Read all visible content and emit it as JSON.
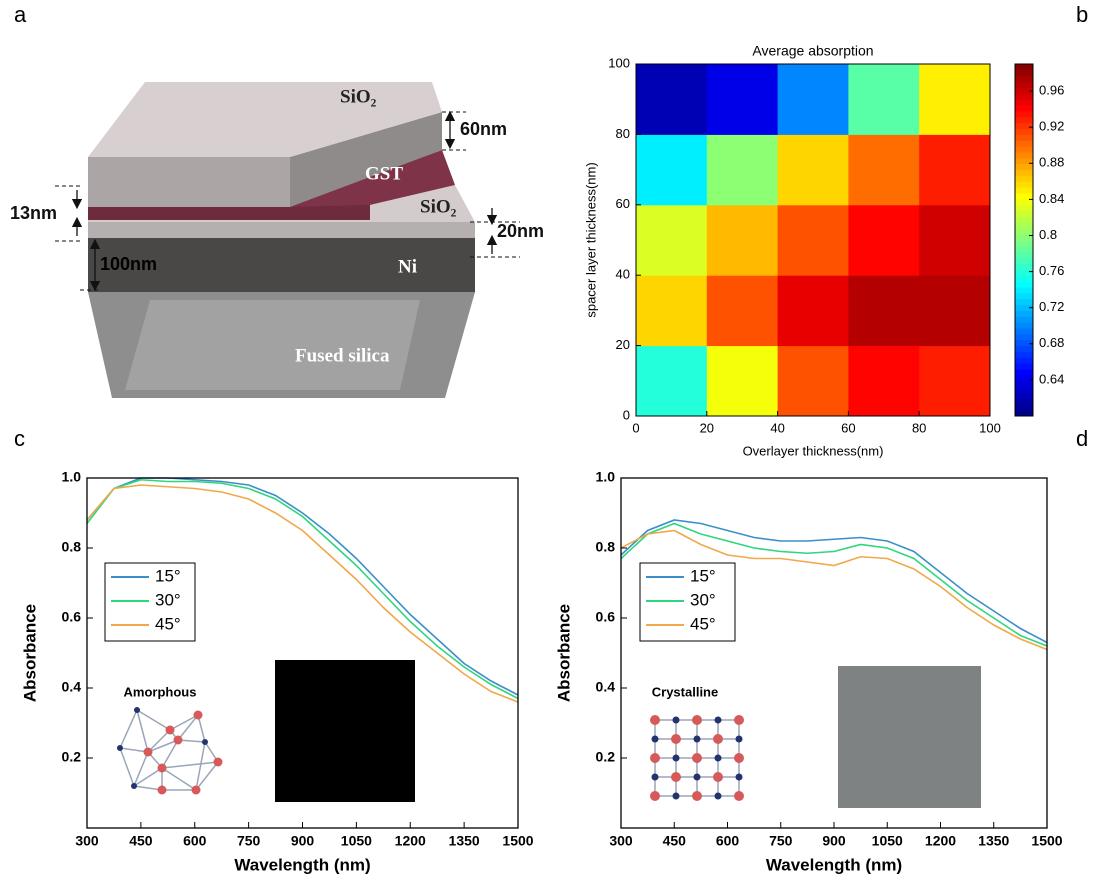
{
  "panel_labels": [
    "a",
    "b",
    "c",
    "d"
  ],
  "diagram": {
    "labels": [
      "SiO₂",
      "60nm",
      "GST",
      "SiO₂",
      "13nm",
      "20nm",
      "100nm",
      "Ni",
      "Fused silica"
    ]
  },
  "chart_data": [
    {
      "type": "heatmap",
      "title": "Average absorption",
      "xlabel": "Overlayer thickness(nm)",
      "ylabel": "spacer layer thickness(nm)",
      "x": [
        10,
        30,
        50,
        70,
        90
      ],
      "y": [
        10,
        30,
        50,
        70,
        90
      ],
      "z": [
        [
          0.76,
          0.84,
          0.91,
          0.94,
          0.93
        ],
        [
          0.86,
          0.91,
          0.95,
          0.97,
          0.97
        ],
        [
          0.83,
          0.87,
          0.91,
          0.94,
          0.96
        ],
        [
          0.74,
          0.8,
          0.86,
          0.9,
          0.93
        ],
        [
          0.62,
          0.64,
          0.7,
          0.78,
          0.85
        ]
      ],
      "xlim": [
        0,
        100
      ],
      "ylim": [
        0,
        100
      ],
      "xticks": [
        0,
        20,
        40,
        60,
        80,
        100
      ],
      "yticks": [
        0,
        20,
        40,
        60,
        80,
        100
      ],
      "zlim": [
        0.6,
        0.99
      ],
      "zticks": [
        0.64,
        0.68,
        0.72,
        0.76,
        0.8,
        0.84,
        0.88,
        0.92,
        0.96
      ],
      "colormap": "jet"
    },
    {
      "type": "line",
      "xlabel": "Wavelength (nm)",
      "ylabel": "Absorbance",
      "inset_label": "Amorphous",
      "x": [
        300,
        375,
        450,
        525,
        600,
        675,
        750,
        825,
        900,
        975,
        1050,
        1125,
        1200,
        1275,
        1350,
        1425,
        1500
      ],
      "series": [
        {
          "name": "15°",
          "color": "#3b8fc8",
          "values": [
            0.88,
            0.97,
            1.0,
            1.0,
            0.995,
            0.99,
            0.98,
            0.95,
            0.9,
            0.84,
            0.77,
            0.69,
            0.61,
            0.54,
            0.47,
            0.42,
            0.38
          ]
        },
        {
          "name": "30°",
          "color": "#2ed67e",
          "values": [
            0.87,
            0.97,
            0.995,
            0.99,
            0.99,
            0.985,
            0.97,
            0.94,
            0.89,
            0.82,
            0.75,
            0.67,
            0.59,
            0.52,
            0.46,
            0.41,
            0.37
          ]
        },
        {
          "name": "45°",
          "color": "#f0a84a",
          "values": [
            0.88,
            0.97,
            0.98,
            0.975,
            0.97,
            0.96,
            0.94,
            0.9,
            0.85,
            0.78,
            0.71,
            0.63,
            0.56,
            0.5,
            0.44,
            0.39,
            0.36
          ]
        }
      ],
      "xlim": [
        300,
        1500
      ],
      "ylim": [
        0,
        1
      ],
      "xticks": [
        300,
        450,
        600,
        750,
        900,
        1050,
        1200,
        1350,
        1500
      ],
      "yticks": [
        0.2,
        0.4,
        0.6,
        0.8,
        {
          "value": 1,
          "label": "1.0"
        }
      ]
    },
    {
      "type": "line",
      "xlabel": "Wavelength (nm)",
      "ylabel": "Absorbance",
      "inset_label": "Crystalline",
      "x": [
        300,
        375,
        450,
        525,
        600,
        675,
        750,
        825,
        900,
        975,
        1050,
        1125,
        1200,
        1275,
        1350,
        1425,
        1500
      ],
      "series": [
        {
          "name": "15°",
          "color": "#3b8fc8",
          "values": [
            0.78,
            0.85,
            0.88,
            0.87,
            0.85,
            0.83,
            0.82,
            0.82,
            0.825,
            0.83,
            0.82,
            0.79,
            0.73,
            0.67,
            0.62,
            0.57,
            0.53
          ]
        },
        {
          "name": "30°",
          "color": "#2ed67e",
          "values": [
            0.77,
            0.84,
            0.87,
            0.84,
            0.82,
            0.8,
            0.79,
            0.785,
            0.79,
            0.81,
            0.8,
            0.77,
            0.71,
            0.65,
            0.6,
            0.55,
            0.52
          ]
        },
        {
          "name": "45°",
          "color": "#f0a84a",
          "values": [
            0.8,
            0.84,
            0.85,
            0.81,
            0.78,
            0.77,
            0.77,
            0.76,
            0.75,
            0.775,
            0.77,
            0.74,
            0.69,
            0.63,
            0.58,
            0.54,
            0.51
          ]
        }
      ],
      "xlim": [
        300,
        1500
      ],
      "ylim": [
        0,
        1
      ],
      "xticks": [
        300,
        450,
        600,
        750,
        900,
        1050,
        1200,
        1350,
        1500
      ],
      "yticks": [
        0.2,
        0.4,
        0.6,
        0.8,
        {
          "value": 1,
          "label": "1.0"
        }
      ]
    }
  ]
}
